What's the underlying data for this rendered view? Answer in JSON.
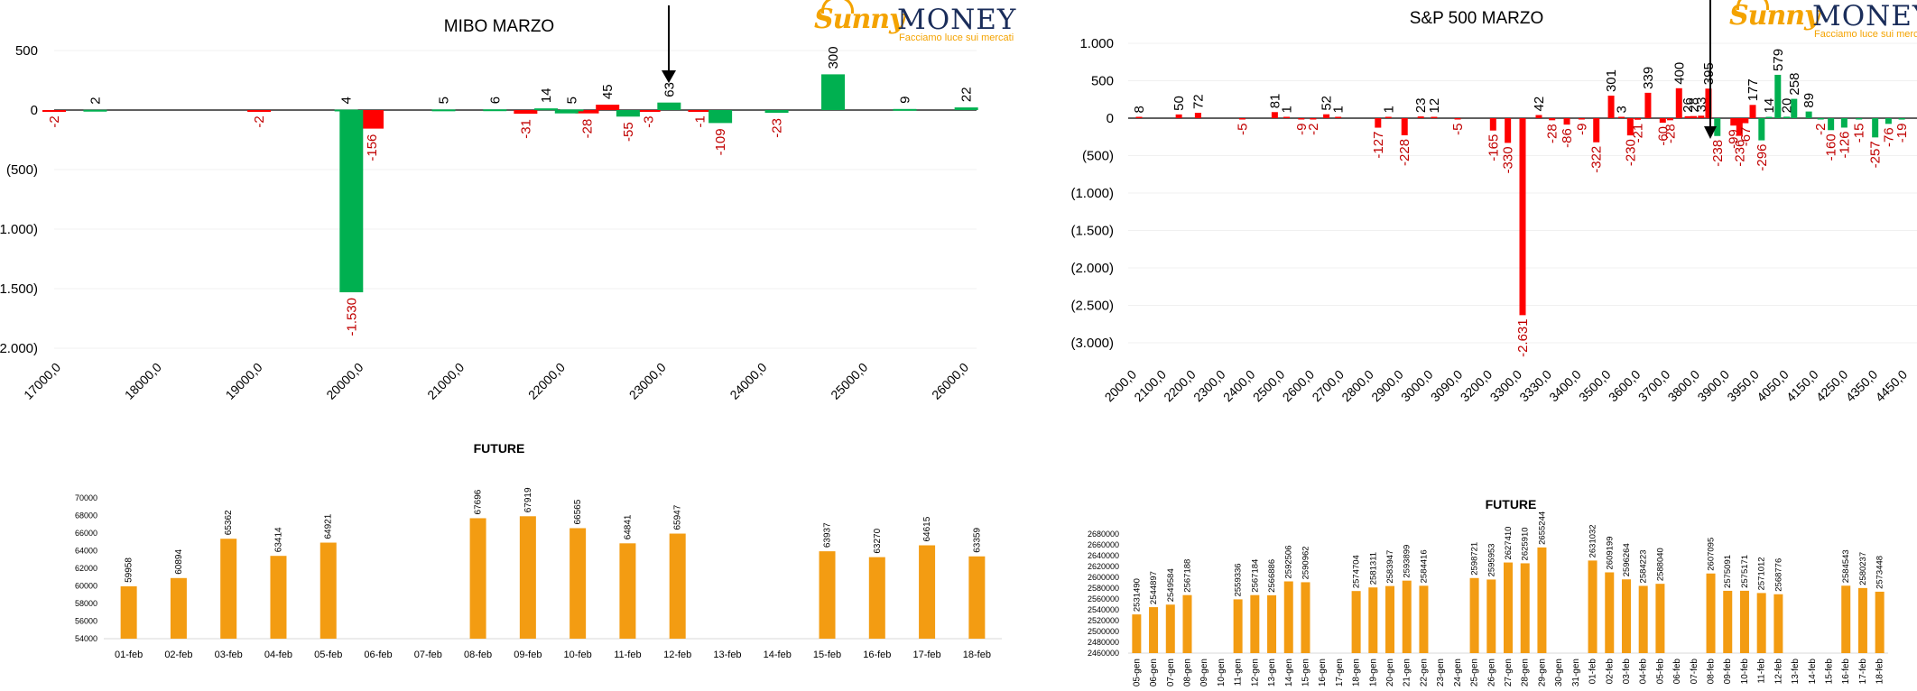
{
  "colors": {
    "green": "#00b050",
    "red": "#ff0000",
    "darkred": "#c00000",
    "orange": "#f39c12",
    "axis": "#000000",
    "label_red": "#c00000"
  },
  "logo": {
    "sunny": "Sunny",
    "money": "MONEY",
    "tagline": "Facciamo luce sui mercati"
  },
  "mibo": {
    "title": "MIBO MARZO",
    "yticks": [
      500,
      0,
      -500,
      -1000,
      -1500,
      -2000
    ],
    "ytick_labels": [
      "500",
      "0",
      "(500)",
      "(1.000)",
      "(1.500)",
      "(2.000)"
    ],
    "xtick_labels": [
      "17000,0",
      "18000,0",
      "19000,0",
      "20000,0",
      "21000,0",
      "22000,0",
      "23000,0",
      "24000,0",
      "25000,0",
      "26000,0"
    ]
  },
  "sp": {
    "title": "S&P 500 MARZO",
    "yticks": [
      1000,
      500,
      0,
      -500,
      -1000,
      -1500,
      -2000,
      -2500,
      -3000
    ],
    "ytick_labels": [
      "1.000",
      "500",
      "0",
      "(500)",
      "(1.000)",
      "(1.500)",
      "(2.000)",
      "(2.500)",
      "(3.000)"
    ],
    "xtick_labels": [
      "2000,0",
      "2100,0",
      "2200,0",
      "2300,0",
      "2400,0",
      "2500,0",
      "2600,0",
      "2700,0",
      "2800,0",
      "2900,0",
      "3000,0",
      "3090,0",
      "3200,0",
      "3300,0",
      "3330,0",
      "3400,0",
      "3500,0",
      "3600,0",
      "3700,0",
      "3800,0",
      "3900,0",
      "3950,0",
      "4050,0",
      "4150,0",
      "4250,0",
      "4350,0",
      "4450,0"
    ]
  },
  "future1": {
    "title": "FUTURE",
    "ytick_labels": [
      "70000",
      "68000",
      "66000",
      "64000",
      "62000",
      "60000",
      "58000",
      "56000",
      "54000"
    ]
  },
  "future2": {
    "title": "FUTURE",
    "ytick_labels": [
      "2680000",
      "2660000",
      "2640000",
      "2620000",
      "2600000",
      "2580000",
      "2560000",
      "2540000",
      "2520000",
      "2500000",
      "2480000",
      "2460000"
    ]
  },
  "chart_data": [
    {
      "type": "bar",
      "title": "MIBO MARZO",
      "ylim": [
        -2000,
        500
      ],
      "x_range": [
        17000,
        26000
      ],
      "series": [
        {
          "color": "red",
          "bars": [
            {
              "x": 17000,
              "value": -2,
              "label": "-2"
            },
            {
              "x": 19000,
              "value": -2,
              "label": "-2"
            },
            {
              "x": 20100,
              "value": -156,
              "label": "-156"
            },
            {
              "x": 21600,
              "value": -31,
              "label": "-31"
            },
            {
              "x": 22200,
              "value": -28,
              "label": "-28"
            },
            {
              "x": 22400,
              "value": 45,
              "label": "45"
            },
            {
              "x": 22800,
              "value": -3,
              "label": "-3"
            },
            {
              "x": 23300,
              "value": -1,
              "label": "-1"
            }
          ]
        },
        {
          "color": "green",
          "bars": [
            {
              "x": 17400,
              "value": 2,
              "label": "2"
            },
            {
              "x": 19850,
              "value": 4,
              "label": "4"
            },
            {
              "x": 19900,
              "value": -1530,
              "label": "-1.530"
            },
            {
              "x": 20800,
              "value": 5,
              "label": "5"
            },
            {
              "x": 21300,
              "value": 6,
              "label": "6"
            },
            {
              "x": 21800,
              "value": 14,
              "label": "14"
            },
            {
              "x": 22050,
              "value": 5,
              "label": "5"
            },
            {
              "x": 22000,
              "value": -28,
              "label": ""
            },
            {
              "x": 22600,
              "value": -55,
              "label": "-55"
            },
            {
              "x": 23000,
              "value": 63,
              "label": "63"
            },
            {
              "x": 23500,
              "value": -109,
              "label": "-109"
            },
            {
              "x": 24050,
              "value": -23,
              "label": "-23"
            },
            {
              "x": 24600,
              "value": 300,
              "label": "300"
            },
            {
              "x": 25300,
              "value": 9,
              "label": "9"
            },
            {
              "x": 25900,
              "value": 22,
              "label": "22"
            }
          ]
        }
      ],
      "annotation": "down-arrow at 22950"
    },
    {
      "type": "bar",
      "title": "S&P 500 MARZO",
      "ylim": [
        -3000,
        1000
      ],
      "bars": [
        {
          "i": 0,
          "value": 8,
          "label": "8",
          "c": "red"
        },
        {
          "i": 2.7,
          "value": 50,
          "label": "50",
          "c": "red"
        },
        {
          "i": 4,
          "value": 72,
          "label": "72",
          "c": "red"
        },
        {
          "i": 7,
          "value": -5,
          "label": "-5",
          "c": "red"
        },
        {
          "i": 9.2,
          "value": 81,
          "label": "81",
          "c": "red"
        },
        {
          "i": 10,
          "value": 1,
          "label": "1",
          "c": "red"
        },
        {
          "i": 11,
          "value": -9,
          "label": "-9",
          "c": "red"
        },
        {
          "i": 11.8,
          "value": -2,
          "label": "-2",
          "c": "red"
        },
        {
          "i": 12.7,
          "value": 52,
          "label": "52",
          "c": "red"
        },
        {
          "i": 13.5,
          "value": 1,
          "label": "1",
          "c": "red"
        },
        {
          "i": 16.2,
          "value": -127,
          "label": "-127",
          "c": "red"
        },
        {
          "i": 16.9,
          "value": 1,
          "label": "1",
          "c": "red"
        },
        {
          "i": 18,
          "value": -228,
          "label": "-228",
          "c": "red"
        },
        {
          "i": 19.1,
          "value": 23,
          "label": "23",
          "c": "red"
        },
        {
          "i": 20,
          "value": 12,
          "label": "12",
          "c": "red"
        },
        {
          "i": 21.6,
          "value": -5,
          "label": "-5",
          "c": "red"
        },
        {
          "i": 24,
          "value": -165,
          "label": "-165",
          "c": "red"
        },
        {
          "i": 25,
          "value": -330,
          "label": "-330",
          "c": "red"
        },
        {
          "i": 26,
          "value": -2631,
          "label": "-2.631",
          "c": "red"
        },
        {
          "i": 27.1,
          "value": 42,
          "label": "42",
          "c": "red"
        },
        {
          "i": 28,
          "value": -28,
          "label": "-28",
          "c": "red"
        },
        {
          "i": 29,
          "value": -86,
          "label": "-86",
          "c": "red"
        },
        {
          "i": 30,
          "value": -9,
          "label": "-9",
          "c": "red"
        },
        {
          "i": 31,
          "value": -322,
          "label": "-322",
          "c": "red"
        },
        {
          "i": 32,
          "value": 301,
          "label": "301",
          "c": "red"
        },
        {
          "i": 32.7,
          "value": 3,
          "label": "3",
          "c": "red"
        },
        {
          "i": 33.3,
          "value": -230,
          "label": "-230",
          "c": "red"
        },
        {
          "i": 33.8,
          "value": -21,
          "label": "-21",
          "c": "red"
        },
        {
          "i": 34.5,
          "value": 339,
          "label": "339",
          "c": "red"
        },
        {
          "i": 35.5,
          "value": -60,
          "label": "-60",
          "c": "red"
        },
        {
          "i": 36,
          "value": -28,
          "label": "-28",
          "c": "red"
        },
        {
          "i": 36.6,
          "value": 400,
          "label": "400",
          "c": "red"
        },
        {
          "i": 37.2,
          "value": 26,
          "label": "26",
          "c": "red"
        },
        {
          "i": 37.6,
          "value": 28,
          "label": "28",
          "c": "red"
        },
        {
          "i": 38.1,
          "value": 33,
          "label": "33",
          "c": "red"
        },
        {
          "i": 38.6,
          "value": 395,
          "label": "395",
          "c": "red"
        },
        {
          "i": 39.2,
          "value": -238,
          "label": "-238",
          "c": "green"
        },
        {
          "i": 40.3,
          "value": -99,
          "label": "-99",
          "c": "red"
        },
        {
          "i": 40.7,
          "value": -236,
          "label": "-236",
          "c": "red"
        },
        {
          "i": 41.1,
          "value": -67,
          "label": "-67",
          "c": "red"
        },
        {
          "i": 41.6,
          "value": 177,
          "label": "177",
          "c": "red"
        },
        {
          "i": 42.2,
          "value": -296,
          "label": "-296",
          "c": "green"
        },
        {
          "i": 42.7,
          "value": 14,
          "label": "14",
          "c": "green"
        },
        {
          "i": 43.3,
          "value": 579,
          "label": "579",
          "c": "green"
        },
        {
          "i": 43.9,
          "value": 20,
          "label": "20",
          "c": "green"
        },
        {
          "i": 44.4,
          "value": 258,
          "label": "258",
          "c": "green"
        },
        {
          "i": 45.4,
          "value": 89,
          "label": "89",
          "c": "green"
        },
        {
          "i": 46.2,
          "value": -2,
          "label": "-2",
          "c": "green"
        },
        {
          "i": 46.9,
          "value": -160,
          "label": "-160",
          "c": "green"
        },
        {
          "i": 47.8,
          "value": -126,
          "label": "-126",
          "c": "green"
        },
        {
          "i": 48.8,
          "value": -15,
          "label": "-15",
          "c": "green"
        },
        {
          "i": 49.9,
          "value": -257,
          "label": "-257",
          "c": "green"
        },
        {
          "i": 50.8,
          "value": -76,
          "label": "-76",
          "c": "green"
        },
        {
          "i": 51.7,
          "value": -19,
          "label": "-19",
          "c": "green"
        }
      ],
      "annotation": "down-arrow at 3900,0"
    },
    {
      "type": "bar",
      "title": "FUTURE",
      "ylim": [
        54000,
        70000
      ],
      "categories": [
        "01-feb",
        "02-feb",
        "03-feb",
        "04-feb",
        "05-feb",
        "06-feb",
        "07-feb",
        "08-feb",
        "09-feb",
        "10-feb",
        "11-feb",
        "12-feb",
        "13-feb",
        "14-feb",
        "15-feb",
        "16-feb",
        "17-feb",
        "18-feb"
      ],
      "values": [
        59958,
        60894,
        65362,
        63414,
        64921,
        null,
        null,
        67696,
        67919,
        66565,
        64841,
        65947,
        null,
        null,
        63937,
        63270,
        64615,
        63359
      ]
    },
    {
      "type": "bar",
      "title": "FUTURE",
      "ylim": [
        2460000,
        2680000
      ],
      "categories": [
        "05-gen",
        "06-gen",
        "07-gen",
        "08-gen",
        "09-gen",
        "10-gen",
        "11-gen",
        "12-gen",
        "13-gen",
        "14-gen",
        "15-gen",
        "16-gen",
        "17-gen",
        "18-gen",
        "19-gen",
        "20-gen",
        "21-gen",
        "22-gen",
        "23-gen",
        "24-gen",
        "25-gen",
        "26-gen",
        "27-gen",
        "28-gen",
        "29-gen",
        "30-gen",
        "31-gen",
        "01-feb",
        "02-feb",
        "03-feb",
        "04-feb",
        "05-feb",
        "06-feb",
        "07-feb",
        "08-feb",
        "09-feb",
        "10-feb",
        "11-feb",
        "12-feb",
        "13-feb",
        "14-feb",
        "15-feb",
        "16-feb",
        "17-feb",
        "18-feb"
      ],
      "values": [
        2531490,
        2544897,
        2549584,
        2567188,
        null,
        null,
        2559336,
        2567184,
        2566886,
        2592506,
        2590962,
        null,
        null,
        2574704,
        2581311,
        2583947,
        2593899,
        2584416,
        null,
        null,
        2598721,
        2595953,
        2627410,
        2625910,
        2655244,
        null,
        null,
        2631032,
        2609199,
        2596264,
        2584223,
        2588040,
        null,
        null,
        2607095,
        2575091,
        2575171,
        2571012,
        2568776,
        null,
        null,
        null,
        2584543,
        2580237,
        2573448
      ]
    }
  ]
}
